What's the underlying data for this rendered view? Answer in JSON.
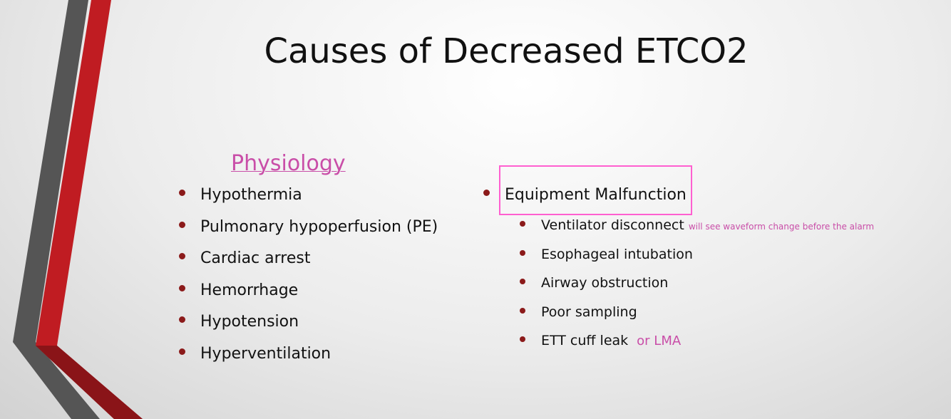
{
  "slide": {
    "title": "Causes of Decreased ETCO2",
    "left": {
      "heading": "Physiology",
      "items": [
        "Hypothermia",
        "Pulmonary hypoperfusion (PE)",
        "Cardiac arrest",
        "Hemorrhage",
        "Hypotension",
        "Hyperventilation"
      ]
    },
    "right": {
      "heading": "Equipment Malfunction",
      "items": [
        {
          "text": "Ventilator disconnect",
          "note": "will see waveform change before the alarm"
        },
        {
          "text": "Esophageal intubation"
        },
        {
          "text": "Airway obstruction"
        },
        {
          "text": "Poor sampling"
        },
        {
          "text": "ETT cuff leak",
          "note": "or LMA"
        }
      ]
    }
  }
}
